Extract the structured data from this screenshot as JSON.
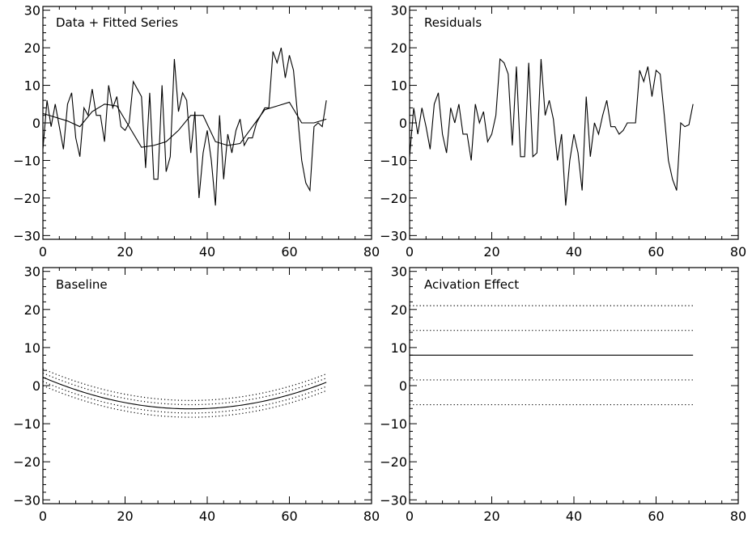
{
  "chart_data": [
    {
      "type": "line",
      "title": "Data + Fitted Series",
      "xlim": [
        0,
        80
      ],
      "ylim": [
        -31,
        31
      ],
      "xticks": [
        0,
        20,
        40,
        60,
        80
      ],
      "yticks": [
        -30,
        -20,
        -10,
        0,
        10,
        20,
        30
      ],
      "xtick_labels": [
        "0",
        "20",
        "40",
        "60",
        "80"
      ],
      "ytick_labels": [
        "−30",
        "−20",
        "−10",
        "0",
        "10",
        "20",
        "30"
      ],
      "series": [
        {
          "style": "solid",
          "x": [
            0,
            1,
            2,
            3,
            4,
            5,
            6,
            7,
            8,
            9,
            10,
            11,
            12,
            13,
            14,
            15,
            16,
            17,
            18,
            19,
            20,
            21,
            22,
            23,
            24,
            25,
            26,
            27,
            28,
            29,
            30,
            31,
            32,
            33,
            34,
            35,
            36,
            37,
            38,
            39,
            40,
            41,
            42,
            43,
            44,
            45,
            46,
            47,
            48,
            49,
            50,
            51,
            52,
            53,
            54,
            55,
            56,
            57,
            58,
            59,
            60,
            61,
            62,
            63,
            64,
            65,
            66,
            67,
            68,
            69
          ],
          "values": [
            -7,
            6,
            -1,
            5,
            -1,
            -7,
            5,
            8,
            -4,
            -9,
            4,
            2,
            9,
            2,
            2,
            -5,
            10,
            4,
            7,
            -1,
            -2,
            0,
            11,
            9,
            7,
            -12,
            8,
            -15,
            -15,
            10,
            -13,
            -9,
            17,
            3,
            8,
            6,
            -8,
            3,
            -20,
            -8,
            -2,
            -10,
            -22,
            2,
            -15,
            -3,
            -8,
            -2,
            1,
            -6,
            -4,
            -4,
            0,
            2,
            4,
            4,
            19,
            16,
            20,
            12,
            18,
            14,
            2,
            -10,
            -16,
            -18,
            -1,
            0,
            -1,
            6
          ]
        },
        {
          "style": "solid",
          "x": [
            0,
            3,
            6,
            9,
            12,
            15,
            18,
            21,
            24,
            27,
            30,
            33,
            36,
            39,
            42,
            45,
            48,
            51,
            54,
            57,
            60,
            63,
            66,
            69
          ],
          "values": [
            2.5,
            1.5,
            0.5,
            -1,
            3,
            5,
            4.5,
            -1,
            -6.5,
            -6,
            -5,
            -2,
            2,
            2,
            -5,
            -6,
            -5.5,
            -1,
            3.5,
            4.5,
            5.5,
            0,
            0,
            1
          ]
        }
      ]
    },
    {
      "type": "line",
      "title": "Residuals",
      "xlim": [
        0,
        80
      ],
      "ylim": [
        -31,
        31
      ],
      "xticks": [
        0,
        20,
        40,
        60,
        80
      ],
      "yticks": [
        -30,
        -20,
        -10,
        0,
        10,
        20,
        30
      ],
      "xtick_labels": [
        "0",
        "20",
        "40",
        "60",
        "80"
      ],
      "ytick_labels": [
        "−30",
        "−20",
        "−10",
        "0",
        "10",
        "20",
        "30"
      ],
      "series": [
        {
          "style": "solid",
          "x": [
            0,
            1,
            2,
            3,
            4,
            5,
            6,
            7,
            8,
            9,
            10,
            11,
            12,
            13,
            14,
            15,
            16,
            17,
            18,
            19,
            20,
            21,
            22,
            23,
            24,
            25,
            26,
            27,
            28,
            29,
            30,
            31,
            32,
            33,
            34,
            35,
            36,
            37,
            38,
            39,
            40,
            41,
            42,
            43,
            44,
            45,
            46,
            47,
            48,
            49,
            50,
            51,
            52,
            53,
            54,
            55,
            56,
            57,
            58,
            59,
            60,
            61,
            62,
            63,
            64,
            65,
            66,
            67,
            68,
            69
          ],
          "values": [
            -9,
            4,
            -3,
            4,
            -1,
            -7,
            5,
            8,
            -3,
            -8,
            4,
            0,
            5,
            -3,
            -3,
            -10,
            5,
            0,
            3,
            -5,
            -3,
            2,
            17,
            16,
            13,
            -6,
            15,
            -9,
            -9,
            16,
            -9,
            -8,
            17,
            2,
            6,
            1,
            -10,
            -3,
            -22,
            -10,
            -3,
            -8,
            -18,
            7,
            -9,
            0,
            -3,
            2,
            6,
            -1,
            -1,
            -3,
            -2,
            0,
            0,
            0,
            14,
            11,
            15,
            7,
            14,
            13,
            2,
            -10,
            -15,
            -18,
            0,
            -1,
            -0.5,
            5
          ]
        }
      ]
    },
    {
      "type": "line",
      "title": "Baseline",
      "xlim": [
        0,
        80
      ],
      "ylim": [
        -31,
        31
      ],
      "xticks": [
        0,
        20,
        40,
        60,
        80
      ],
      "yticks": [
        -30,
        -20,
        -10,
        0,
        10,
        20,
        30
      ],
      "xtick_labels": [
        "0",
        "20",
        "40",
        "60",
        "80"
      ],
      "ytick_labels": [
        "−30",
        "−20",
        "−10",
        "0",
        "10",
        "20",
        "30"
      ],
      "curve": {
        "kind": "parabola",
        "x_start": 0,
        "x_end": 69,
        "x_vertex": 36,
        "y_vertex": -6.1,
        "y_at_start": 2.2
      },
      "series": [
        {
          "style": "solid",
          "offset": 0
        },
        {
          "style": "dotted",
          "offset": 2.2
        },
        {
          "style": "dotted",
          "offset": 1.1
        },
        {
          "style": "dotted",
          "offset": -1.1
        },
        {
          "style": "dotted",
          "offset": -2.2
        }
      ]
    },
    {
      "type": "line",
      "title": "Acivation Effect",
      "xlim": [
        0,
        80
      ],
      "ylim": [
        -31,
        31
      ],
      "xticks": [
        0,
        20,
        40,
        60,
        80
      ],
      "yticks": [
        -30,
        -20,
        -10,
        0,
        10,
        20,
        30
      ],
      "xtick_labels": [
        "0",
        "20",
        "40",
        "60",
        "80"
      ],
      "ytick_labels": [
        "−30",
        "−20",
        "−10",
        "0",
        "10",
        "20",
        "30"
      ],
      "series": [
        {
          "style": "solid",
          "x": [
            0,
            69
          ],
          "values": [
            8,
            8
          ]
        },
        {
          "style": "dotted",
          "x": [
            0,
            69
          ],
          "values": [
            21,
            21
          ]
        },
        {
          "style": "dotted",
          "x": [
            0,
            69
          ],
          "values": [
            14.5,
            14.5
          ]
        },
        {
          "style": "dotted",
          "x": [
            0,
            69
          ],
          "values": [
            1.5,
            1.5
          ]
        },
        {
          "style": "dotted",
          "x": [
            0,
            69
          ],
          "values": [
            -5,
            -5
          ]
        }
      ]
    }
  ]
}
